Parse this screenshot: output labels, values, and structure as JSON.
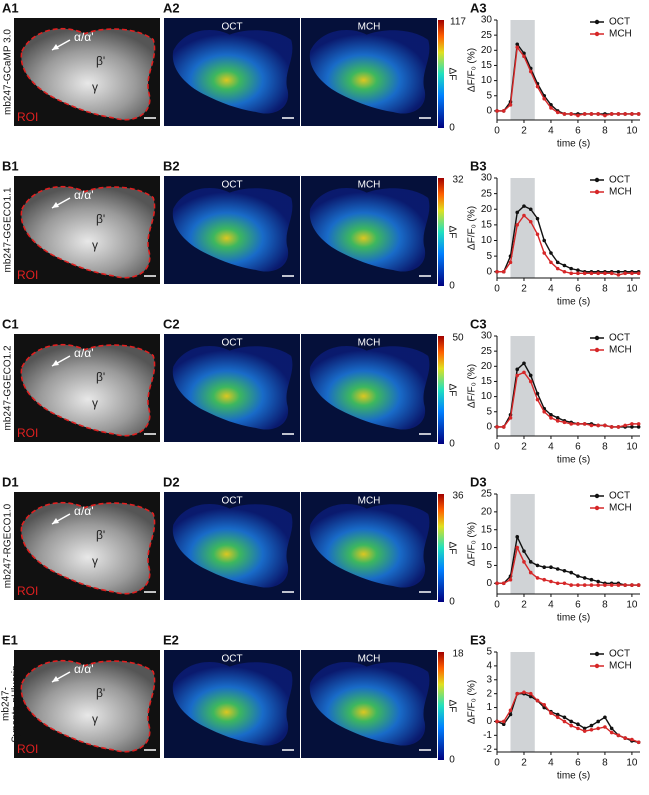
{
  "rows": [
    {
      "label1": "A1",
      "label2": "A2",
      "label3": "A3",
      "strain": [
        "mb247-GCaMP 3.0"
      ],
      "lobes": [
        "α/α'",
        "β'",
        "γ"
      ],
      "roi": "ROI",
      "odor1": "OCT",
      "odor2": "MCH",
      "colorbar": {
        "max": 117,
        "min": 0,
        "label": "ΔF"
      }
    },
    {
      "label1": "B1",
      "label2": "B2",
      "label3": "B3",
      "strain": [
        "mb247-GGECO1.1"
      ],
      "lobes": [
        "α/α'",
        "β'",
        "γ"
      ],
      "roi": "ROI",
      "odor1": "OCT",
      "odor2": "MCH",
      "colorbar": {
        "max": 32,
        "min": 0,
        "label": "ΔF"
      }
    },
    {
      "label1": "C1",
      "label2": "C2",
      "label3": "C3",
      "strain": [
        "mb247-GGECO1.2"
      ],
      "lobes": [
        "α/α'",
        "β'",
        "γ"
      ],
      "roi": "ROI",
      "odor1": "OCT",
      "odor2": "MCH",
      "colorbar": {
        "max": 50,
        "min": 0,
        "label": "ΔF"
      }
    },
    {
      "label1": "D1",
      "label2": "D2",
      "label3": "D3",
      "strain": [
        "mb247-RGECO1.0"
      ],
      "lobes": [
        "α/α'",
        "β'",
        "γ"
      ],
      "roi": "ROI",
      "odor1": "OCT",
      "odor2": "MCH",
      "colorbar": {
        "max": 36,
        "min": 0,
        "label": "ΔF"
      }
    },
    {
      "label1": "E1",
      "label2": "E2",
      "label3": "E3",
      "strain": [
        "mb247-",
        "Synapto-pHluorin"
      ],
      "lobes": [
        "α/α'",
        "β'",
        "γ"
      ],
      "roi": "ROI",
      "odor1": "OCT",
      "odor2": "MCH",
      "colorbar": {
        "max": 18,
        "min": 0,
        "label": "ΔF"
      }
    }
  ],
  "chart_data": [
    {
      "type": "line",
      "xlabel": "time (s)",
      "ylabel": "ΔF/F₀ (%)",
      "x": [
        0,
        0.5,
        1,
        1.5,
        2,
        2.5,
        3,
        3.5,
        4,
        4.5,
        5,
        5.5,
        6,
        6.5,
        7,
        7.5,
        8,
        8.5,
        9,
        9.5,
        10,
        10.5
      ],
      "xlim": [
        0,
        10.6
      ],
      "xticks": [
        0,
        2,
        4,
        6,
        8,
        10
      ],
      "ylim": [
        -3,
        30
      ],
      "yticks": [
        0,
        5,
        10,
        15,
        20,
        25,
        30
      ],
      "shade": [
        1,
        2.8
      ],
      "legend": "upper right",
      "series": [
        {
          "name": "OCT",
          "color": "#111111",
          "values": [
            0,
            0,
            3,
            22,
            19,
            14,
            9,
            5,
            2,
            0,
            -1,
            -1,
            -1,
            -1,
            -1,
            -1,
            -1,
            -1,
            -1,
            -1,
            -1,
            -1
          ]
        },
        {
          "name": "MCH",
          "color": "#d62728",
          "values": [
            0,
            0,
            2,
            21,
            18,
            13,
            8,
            4,
            1,
            -0.5,
            -1,
            -1,
            -1.5,
            -1,
            -1,
            -1,
            -1.5,
            -1,
            -1,
            -1,
            -1,
            -1
          ]
        }
      ]
    },
    {
      "type": "line",
      "xlabel": "time (s)",
      "ylabel": "ΔF/F₀ (%)",
      "x": [
        0,
        0.5,
        1,
        1.5,
        2,
        2.5,
        3,
        3.5,
        4,
        4.5,
        5,
        5.5,
        6,
        6.5,
        7,
        7.5,
        8,
        8.5,
        9,
        9.5,
        10,
        10.5
      ],
      "xlim": [
        0,
        10.6
      ],
      "xticks": [
        0,
        2,
        4,
        6,
        8,
        10
      ],
      "ylim": [
        -2,
        30
      ],
      "yticks": [
        0,
        5,
        10,
        15,
        20,
        25,
        30
      ],
      "shade": [
        1,
        2.8
      ],
      "legend": "upper right",
      "series": [
        {
          "name": "OCT",
          "color": "#111111",
          "values": [
            0,
            0,
            5,
            19,
            21,
            20,
            17,
            10,
            6,
            3,
            2,
            1,
            0.5,
            0,
            0,
            0,
            0,
            0,
            0,
            0,
            0,
            0
          ]
        },
        {
          "name": "MCH",
          "color": "#d62728",
          "values": [
            0,
            0,
            3,
            15,
            18,
            16,
            12,
            6,
            3,
            1,
            0,
            -0.5,
            -0.5,
            -0.5,
            -0.5,
            -0.5,
            -0.5,
            -0.5,
            -1,
            -0.5,
            -0.5,
            -0.5
          ]
        }
      ]
    },
    {
      "type": "line",
      "xlabel": "time (s)",
      "ylabel": "ΔF/F₀ (%)",
      "x": [
        0,
        0.5,
        1,
        1.5,
        2,
        2.5,
        3,
        3.5,
        4,
        4.5,
        5,
        5.5,
        6,
        6.5,
        7,
        7.5,
        8,
        8.5,
        9,
        9.5,
        10,
        10.5
      ],
      "xlim": [
        0,
        10.6
      ],
      "xticks": [
        0,
        2,
        4,
        6,
        8,
        10
      ],
      "ylim": [
        -3,
        30
      ],
      "yticks": [
        0,
        5,
        10,
        15,
        20,
        25,
        30
      ],
      "shade": [
        1,
        2.8
      ],
      "legend": "upper right",
      "series": [
        {
          "name": "OCT",
          "color": "#111111",
          "values": [
            0,
            0,
            4,
            19,
            21,
            17,
            11,
            6,
            4,
            3,
            2,
            1.5,
            1,
            1,
            1,
            0.5,
            0.5,
            0,
            0,
            0,
            0,
            0
          ]
        },
        {
          "name": "MCH",
          "color": "#d62728",
          "values": [
            0,
            0,
            3,
            17,
            18,
            15,
            9,
            5,
            3,
            2,
            1.5,
            1,
            1,
            1,
            0.5,
            0.5,
            0.5,
            0,
            0,
            0.5,
            1,
            1
          ]
        }
      ]
    },
    {
      "type": "line",
      "xlabel": "time (s)",
      "ylabel": "ΔF/F₀ (%)",
      "x": [
        0,
        0.5,
        1,
        1.5,
        2,
        2.5,
        3,
        3.5,
        4,
        4.5,
        5,
        5.5,
        6,
        6.5,
        7,
        7.5,
        8,
        8.5,
        9,
        9.5,
        10,
        10.5
      ],
      "xlim": [
        0,
        10.6
      ],
      "xticks": [
        0,
        2,
        4,
        6,
        8,
        10
      ],
      "ylim": [
        -3,
        25
      ],
      "yticks": [
        0,
        5,
        10,
        15,
        20,
        25
      ],
      "shade": [
        1,
        2.8
      ],
      "legend": "upper right",
      "series": [
        {
          "name": "OCT",
          "color": "#111111",
          "values": [
            0,
            0,
            2,
            13,
            9,
            6,
            5,
            4.5,
            4.5,
            4,
            3.5,
            3,
            2,
            1.5,
            1,
            0.5,
            0,
            0,
            0,
            -0.5,
            -0.5,
            -0.5
          ]
        },
        {
          "name": "MCH",
          "color": "#d62728",
          "values": [
            0,
            0,
            1,
            10,
            6,
            3,
            1.5,
            1,
            0.5,
            0,
            0,
            -0.5,
            -0.5,
            -0.5,
            -0.5,
            -0.5,
            -0.5,
            -0.5,
            -0.5,
            -0.5,
            -0.5,
            -0.5
          ]
        }
      ]
    },
    {
      "type": "line",
      "xlabel": "time (s)",
      "ylabel": "ΔF/F₀ (%)",
      "x": [
        0,
        0.5,
        1,
        1.5,
        2,
        2.5,
        3,
        3.5,
        4,
        4.5,
        5,
        5.5,
        6,
        6.5,
        7,
        7.5,
        8,
        8.5,
        9,
        9.5,
        10,
        10.5
      ],
      "xlim": [
        0,
        10.6
      ],
      "xticks": [
        0,
        2,
        4,
        6,
        8,
        10
      ],
      "ylim": [
        -2.2,
        5
      ],
      "yticks": [
        -2,
        -1,
        0,
        1,
        2,
        3,
        4,
        5
      ],
      "shade": [
        1,
        2.8
      ],
      "legend": "upper right",
      "series": [
        {
          "name": "OCT",
          "color": "#111111",
          "values": [
            0,
            -0.2,
            0.5,
            2,
            2,
            1.8,
            1.5,
            1,
            0.7,
            0.5,
            0.3,
            0,
            -0.2,
            -0.5,
            -0.3,
            0,
            0.3,
            -0.5,
            -1,
            -1.2,
            -1.4,
            -1.5
          ]
        },
        {
          "name": "MCH",
          "color": "#d62728",
          "values": [
            0,
            0,
            0.8,
            2,
            2.1,
            2,
            1.5,
            1.2,
            0.6,
            0.3,
            0,
            -0.3,
            -0.5,
            -0.7,
            -0.6,
            -0.5,
            -0.4,
            -0.8,
            -1,
            -1.2,
            -1.3,
            -1.5
          ]
        }
      ]
    }
  ]
}
